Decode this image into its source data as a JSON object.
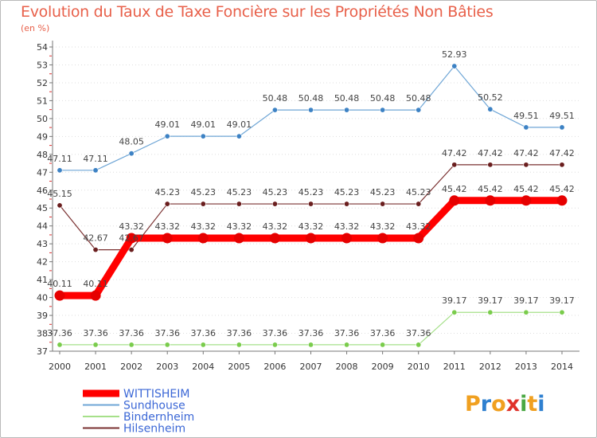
{
  "title": "Evolution du Taux de Taxe Foncière sur les Propriétés Non Bâties",
  "unit": "(en %)",
  "logo": {
    "letters": [
      "P",
      "r",
      "o",
      "x",
      "i",
      "t",
      "i"
    ],
    "colors": [
      "#f0a020",
      "#2f80d0",
      "#f0a020",
      "#e0322a",
      "#4aa844",
      "#f0a020",
      "#2f80d0"
    ]
  },
  "chart_data": {
    "type": "line",
    "title": "Evolution du Taux de Taxe Foncière sur les Propriétés Non Bâties",
    "ylabel": "(en %)",
    "xlabel": "",
    "categories": [
      "2000",
      "2001",
      "2002",
      "2003",
      "2004",
      "2005",
      "2006",
      "2007",
      "2008",
      "2009",
      "2010",
      "2011",
      "2012",
      "2013",
      "2014"
    ],
    "ylim": [
      37,
      54
    ],
    "yticks": [
      37,
      38,
      39,
      40,
      41,
      42,
      43,
      44,
      45,
      46,
      47,
      48,
      49,
      50,
      51,
      52,
      53,
      54
    ],
    "grid": "dotted horizontal",
    "legend_position": "bottom-left",
    "series": [
      {
        "name": "Sundhouse",
        "color": "#6fa6d6",
        "marker": "#3d82c4",
        "width": 1.2,
        "values": [
          47.11,
          47.11,
          48.05,
          49.01,
          49.01,
          49.01,
          50.48,
          50.48,
          50.48,
          50.48,
          50.48,
          52.93,
          50.52,
          49.51,
          49.51
        ],
        "labels": [
          "47.11",
          "47.11",
          "48.05",
          "49.01",
          "49.01",
          "49.01",
          "50.48",
          "50.48",
          "50.48",
          "50.48",
          "50.48",
          "52.93",
          "50.52",
          "49.51",
          "49.51"
        ]
      },
      {
        "name": "Bindernheim",
        "color": "#a6e08a",
        "marker": "#7acc4c",
        "width": 1.2,
        "values": [
          37.36,
          37.36,
          37.36,
          37.36,
          37.36,
          37.36,
          37.36,
          37.36,
          37.36,
          37.36,
          37.36,
          39.17,
          39.17,
          39.17,
          39.17
        ],
        "labels": [
          "37.36",
          "37.36",
          "37.36",
          "37.36",
          "37.36",
          "37.36",
          "37.36",
          "37.36",
          "37.36",
          "37.36",
          "37.36",
          "39.17",
          "39.17",
          "39.17",
          "39.17"
        ]
      },
      {
        "name": "Hilsenheim",
        "color": "#7a3030",
        "marker": "#6a1e1e",
        "width": 1.2,
        "values": [
          45.15,
          42.67,
          42.67,
          45.23,
          45.23,
          45.23,
          45.23,
          45.23,
          45.23,
          45.23,
          45.23,
          47.42,
          47.42,
          47.42,
          47.42
        ],
        "labels": [
          "45.15",
          "42.67",
          "42.67",
          "45.23",
          "45.23",
          "45.23",
          "45.23",
          "45.23",
          "45.23",
          "45.23",
          "45.23",
          "47.42",
          "47.42",
          "47.42",
          "47.42"
        ]
      },
      {
        "name": "WITTISHEIM",
        "color": "#ff0000",
        "marker": "#e60000",
        "width": 9,
        "values": [
          40.11,
          40.11,
          43.32,
          43.32,
          43.32,
          43.32,
          43.32,
          43.32,
          43.32,
          43.32,
          43.32,
          45.42,
          45.42,
          45.42,
          45.42
        ],
        "labels": [
          "40.11",
          "40.11",
          "43.32",
          "43.32",
          "43.32",
          "43.32",
          "43.32",
          "43.32",
          "43.32",
          "43.32",
          "43.32",
          "45.42",
          "45.42",
          "45.42",
          "45.42"
        ]
      }
    ],
    "legend": [
      {
        "name": "WITTISHEIM",
        "color": "#ff0000"
      },
      {
        "name": "Sundhouse",
        "color": "#6fa6d6"
      },
      {
        "name": "Bindernheim",
        "color": "#a6e08a"
      },
      {
        "name": "Hilsenheim",
        "color": "#7a3030"
      }
    ]
  }
}
